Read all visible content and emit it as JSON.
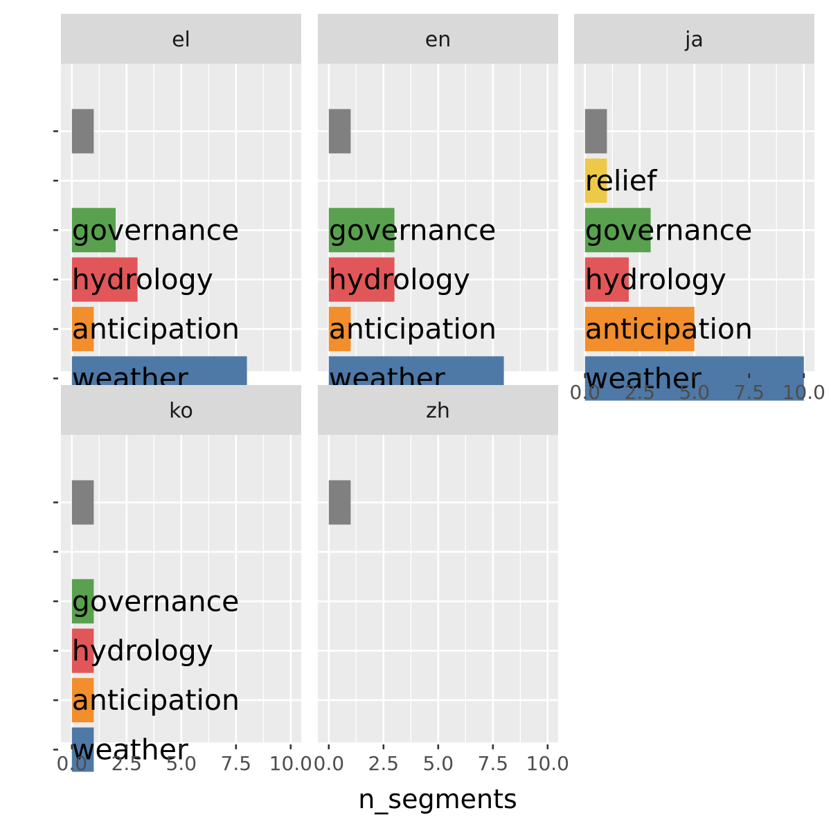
{
  "chart_data": {
    "type": "bar",
    "orientation": "horizontal",
    "facet_layout": "wrap 3 columns",
    "xlabel": "n_segments",
    "ylabel": "",
    "xlim": [
      0,
      10
    ],
    "x_ticks": [
      "0.0",
      "2.5",
      "5.0",
      "7.5",
      "10.0"
    ],
    "grid": true,
    "categories": [
      "weather",
      "anticipation",
      "hydrology",
      "governance",
      "relief",
      ""
    ],
    "category_colors": {
      "weather": "#4e79a7",
      "anticipation": "#f28e2b",
      "hydrology": "#e15759",
      "governance": "#59a14f",
      "relief": "#edc948",
      "": "#808080"
    },
    "panels": [
      {
        "facet": "el",
        "values": [
          8,
          1,
          3,
          2,
          0,
          1
        ]
      },
      {
        "facet": "en",
        "values": [
          8,
          1,
          3,
          3,
          0,
          1
        ]
      },
      {
        "facet": "ja",
        "values": [
          10,
          5,
          2,
          3,
          1,
          1
        ]
      },
      {
        "facet": "ko",
        "values": [
          1,
          1,
          1,
          1,
          0,
          1
        ]
      },
      {
        "facet": "zh",
        "values": [
          0,
          0,
          0,
          0,
          0,
          1
        ]
      }
    ]
  },
  "colors": {
    "panel_background": "#ebebeb",
    "strip_background": "#d9d9d9",
    "grid": "#ffffff"
  }
}
